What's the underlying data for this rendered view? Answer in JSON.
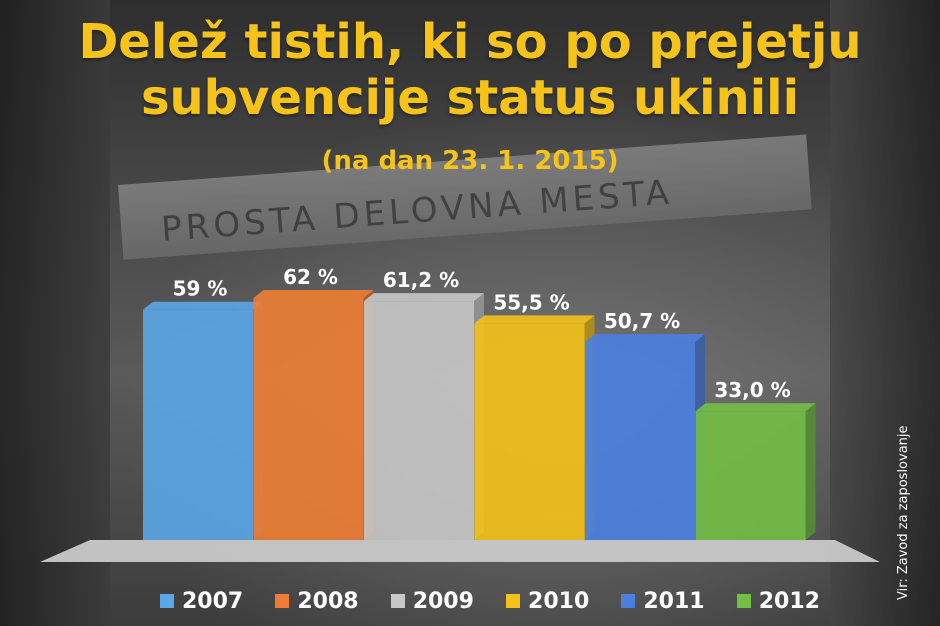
{
  "background_sign": "PROSTA DELOVNA MESTA",
  "source": "Vir: Zavod za zaposlovanje",
  "chart_data": {
    "type": "bar",
    "title": "Delež tistih, ki so po prejetju subvencije status ukinili",
    "subtitle": "(na dan 23. 1. 2015)",
    "categories": [
      "2007",
      "2008",
      "2009",
      "2010",
      "2011",
      "2012"
    ],
    "values": [
      59,
      62,
      61.2,
      55.5,
      50.7,
      33.0
    ],
    "value_labels": [
      "59 %",
      "62 %",
      "61,2 %",
      "55,5 %",
      "50,7 %",
      "33,0 %"
    ],
    "colors": [
      "#5aa6e6",
      "#ee7d33",
      "#c8c8c8",
      "#f4c21a",
      "#4a7fe0",
      "#72bf44"
    ],
    "ylim": [
      0,
      70
    ],
    "grid": false,
    "legend": "bottom"
  }
}
